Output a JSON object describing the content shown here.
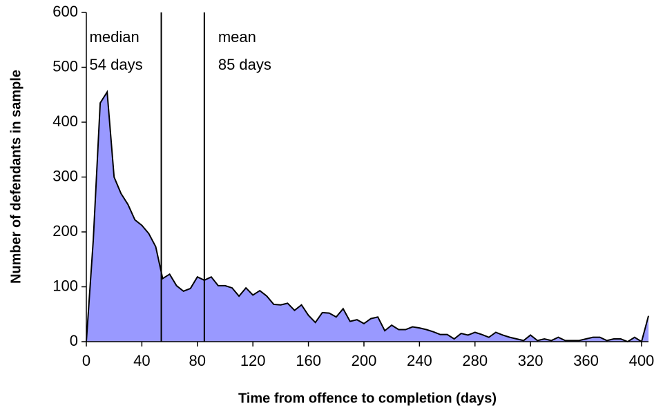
{
  "chart_data": {
    "type": "area",
    "xlabel": "Time from offence to completion (days)",
    "ylabel": "Number of defendants in sample",
    "x": [
      0,
      5,
      10,
      15,
      20,
      25,
      30,
      35,
      40,
      45,
      50,
      55,
      60,
      65,
      70,
      75,
      80,
      85,
      90,
      95,
      100,
      105,
      110,
      115,
      120,
      125,
      130,
      135,
      140,
      145,
      150,
      155,
      160,
      165,
      170,
      175,
      180,
      185,
      190,
      195,
      200,
      205,
      210,
      215,
      220,
      225,
      230,
      235,
      240,
      245,
      250,
      255,
      260,
      265,
      270,
      275,
      280,
      285,
      290,
      295,
      300,
      305,
      310,
      315,
      320,
      325,
      330,
      335,
      340,
      345,
      350,
      355,
      360,
      365,
      370,
      375,
      380,
      385,
      390,
      395,
      400,
      405
    ],
    "values": [
      0,
      185,
      435,
      455,
      300,
      270,
      250,
      222,
      212,
      197,
      173,
      115,
      123,
      102,
      92,
      97,
      118,
      112,
      118,
      102,
      102,
      98,
      83,
      98,
      85,
      93,
      83,
      68,
      67,
      70,
      57,
      67,
      48,
      35,
      53,
      52,
      45,
      60,
      37,
      40,
      33,
      42,
      45,
      20,
      30,
      22,
      22,
      27,
      25,
      22,
      18,
      13,
      13,
      5,
      15,
      12,
      17,
      13,
      8,
      17,
      12,
      8,
      5,
      2,
      12,
      2,
      5,
      2,
      8,
      2,
      2,
      2,
      5,
      8,
      8,
      2,
      5,
      5,
      0,
      8,
      0,
      47
    ],
    "color": "#9999ff",
    "xlim": [
      0,
      405
    ],
    "ylim": [
      0,
      600
    ],
    "xticks": [
      0,
      40,
      80,
      120,
      160,
      200,
      240,
      280,
      320,
      360,
      400
    ],
    "yticks": [
      0,
      100,
      200,
      300,
      400,
      500,
      600
    ],
    "annotations": [
      {
        "lines": [
          "median",
          "54 days"
        ],
        "x": 54
      },
      {
        "lines": [
          "mean",
          "85 days"
        ],
        "x": 85
      }
    ]
  }
}
